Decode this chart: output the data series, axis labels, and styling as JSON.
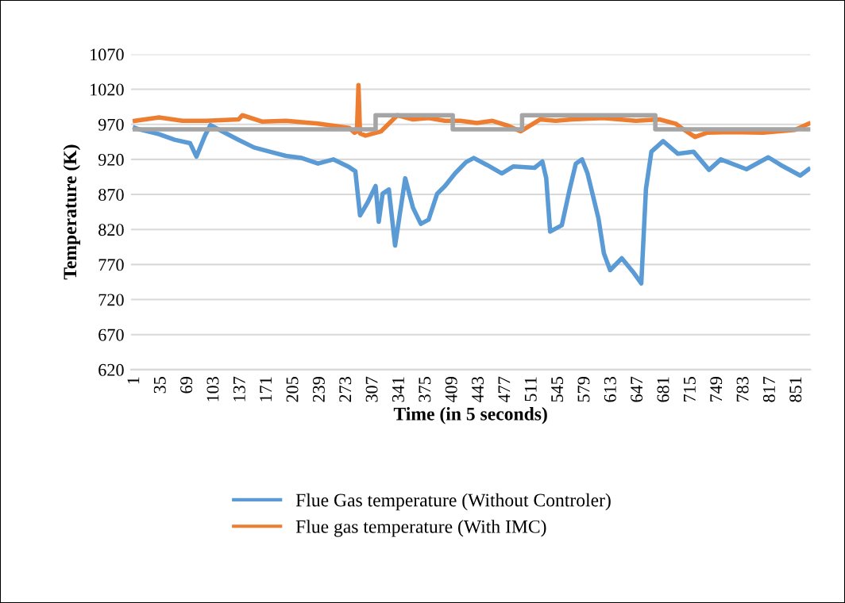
{
  "chart_data": {
    "type": "line",
    "xlabel": "Time (in 5 seconds)",
    "ylabel": "Temperature (K)",
    "xlim": [
      -4,
      868
    ],
    "xticks": [
      1,
      35,
      69,
      103,
      137,
      171,
      205,
      239,
      273,
      307,
      341,
      375,
      409,
      443,
      477,
      511,
      545,
      579,
      613,
      647,
      681,
      715,
      749,
      783,
      817,
      851
    ],
    "ylim": [
      620,
      1070
    ],
    "yticks": [
      620,
      670,
      720,
      770,
      820,
      870,
      920,
      970,
      1020,
      1070
    ],
    "grid": "y",
    "legend": "bottom",
    "marker": "none",
    "line_style": "solid",
    "series": [
      {
        "name": "Flue Gas temperature (Without Controler)",
        "color": "#5b9bd5",
        "x": [
          1,
          6,
          32,
          52,
          72,
          80,
          91,
          98,
          113,
          134,
          154,
          174,
          195,
          215,
          236,
          256,
          276,
          284,
          290,
          300,
          310,
          314,
          319,
          327,
          335,
          348,
          358,
          368,
          378,
          389,
          399,
          412,
          426,
          436,
          453,
          472,
          487,
          514,
          524,
          529,
          534,
          549,
          559,
          567,
          575,
          582,
          596,
          603,
          611,
          626,
          640,
          651,
          657,
          664,
          679,
          698,
          718,
          738,
          753,
          786,
          814,
          830,
          855,
          866
        ],
        "values": [
          965,
          963,
          956,
          948,
          943,
          924,
          954,
          969,
          960,
          948,
          937,
          931,
          925,
          922,
          914,
          920,
          909,
          903,
          840,
          859,
          882,
          831,
          871,
          877,
          797,
          893,
          851,
          828,
          834,
          871,
          882,
          900,
          916,
          922,
          912,
          900,
          910,
          908,
          917,
          893,
          817,
          826,
          877,
          914,
          920,
          900,
          836,
          786,
          762,
          779,
          760,
          743,
          878,
          931,
          946,
          928,
          931,
          905,
          920,
          906,
          923,
          912,
          897,
          906
        ]
      },
      {
        "name": "Flue gas temperature (With IMC)",
        "color": "#ed7d31",
        "x": [
          1,
          32,
          62,
          93,
          134,
          139,
          164,
          195,
          236,
          256,
          276,
          283,
          286,
          288,
          290,
          297,
          317,
          338,
          358,
          378,
          399,
          419,
          440,
          460,
          480,
          496,
          521,
          541,
          562,
          603,
          623,
          644,
          674,
          695,
          705,
          720,
          735,
          766,
          807,
          848,
          866
        ],
        "values": [
          975,
          980,
          975,
          975,
          977,
          983,
          974,
          975,
          971,
          968,
          965,
          958,
          960,
          1026,
          957,
          954,
          960,
          983,
          977,
          979,
          975,
          975,
          972,
          975,
          968,
          960,
          977,
          975,
          977,
          979,
          977,
          975,
          977,
          971,
          963,
          952,
          958,
          959,
          958,
          962,
          971
        ]
      },
      {
        "color": "#a5a5a5",
        "x": [
          1,
          310,
          310,
          409,
          409,
          498,
          498,
          669,
          669,
          866
        ],
        "values": [
          963,
          963,
          983,
          983,
          963,
          963,
          983,
          983,
          963,
          963
        ]
      }
    ]
  }
}
